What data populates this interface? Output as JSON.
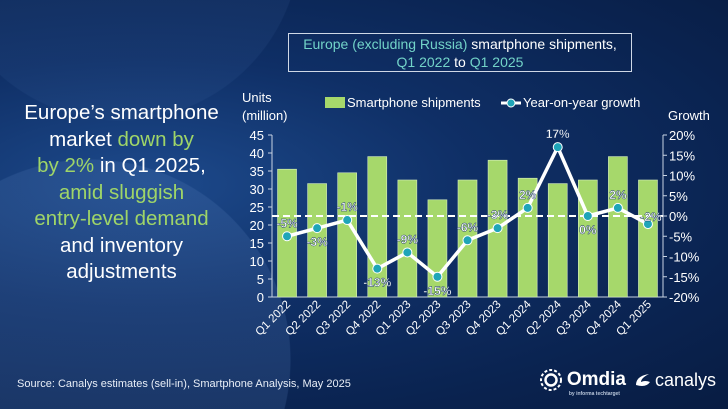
{
  "headline": {
    "segments": [
      {
        "text": "Europe’s smartphone",
        "highlight": false,
        "br": true
      },
      {
        "text": "market ",
        "highlight": false
      },
      {
        "text": "down by",
        "highlight": true,
        "br": true
      },
      {
        "text": "by 2%",
        "highlight": true
      },
      {
        "text": " in Q1 2025,",
        "highlight": false,
        "br": true
      },
      {
        "text": "amid sluggish",
        "highlight": true,
        "br": true
      },
      {
        "text": "entry-level demand",
        "highlight": true,
        "br": true
      },
      {
        "text": "and inventory",
        "highlight": false,
        "br": true
      },
      {
        "text": "adjustments",
        "highlight": false
      }
    ]
  },
  "source": "Source: Canalys estimates (sell-in), Smartphone Analysis, May 2025",
  "logos": {
    "omdia": "Omdia",
    "omdia_sub": "by informa techtarget",
    "canalys": "canalys"
  },
  "colors": {
    "bar": "#a6d86b",
    "line": "#ffffff",
    "marker": "#1fa5b8",
    "highlight": "#9fd568",
    "title_highlight": "#72d3c8"
  },
  "chart_data": {
    "type": "bar+line",
    "title_parts": [
      {
        "text": "Europe (excluding Russia)",
        "highlight": true
      },
      {
        "text": " smartphone shipments,",
        "highlight": false,
        "br": true
      },
      {
        "text": "Q1 2022",
        "highlight": true
      },
      {
        "text": " to ",
        "highlight": false
      },
      {
        "text": "Q1 2025",
        "highlight": true
      }
    ],
    "categories": [
      "Q1 2022",
      "Q2 2022",
      "Q3 2022",
      "Q4 2022",
      "Q1 2023",
      "Q2 2023",
      "Q3 2023",
      "Q4 2023",
      "Q1 2024",
      "Q2 2024",
      "Q3 2024",
      "Q4 2024",
      "Q1 2025"
    ],
    "series": [
      {
        "name": "Smartphone shipments",
        "type": "bar",
        "axis": "left",
        "values": [
          35.5,
          31.5,
          34.5,
          39,
          32.5,
          27,
          32.5,
          38,
          33,
          31.5,
          32.5,
          39,
          32.5
        ]
      },
      {
        "name": "Year-on-year growth",
        "type": "line",
        "axis": "right",
        "values": [
          -5,
          -3,
          -1,
          -13,
          -9,
          -15,
          -6,
          -3,
          2,
          17,
          0,
          2,
          -2
        ],
        "labels": [
          "-5%",
          "-3%",
          "-1%",
          "-13%",
          "-9%",
          "-15%",
          "-6%",
          "-3%",
          "2%",
          "17%",
          "0%",
          "2%",
          "-2%"
        ]
      }
    ],
    "ylabel_left": [
      "Units",
      "(million)"
    ],
    "ylabel_right": "Growth",
    "ylim_left": [
      0,
      45
    ],
    "ylim_right": [
      -20,
      20
    ],
    "yticks_left": [
      "0",
      "5",
      "10",
      "15",
      "20",
      "25",
      "30",
      "35",
      "40",
      "45"
    ],
    "yticks_right": [
      "-20%",
      "-15%",
      "-10%",
      "-5%",
      "0%",
      "5%",
      "10%",
      "15%",
      "20%"
    ],
    "zero_line": "dashed",
    "grid": false,
    "legend_position": "top"
  }
}
